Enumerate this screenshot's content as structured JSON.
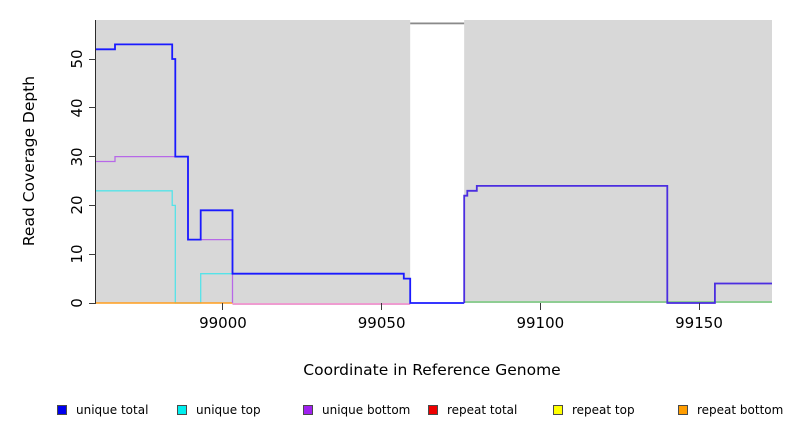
{
  "chart_data": {
    "type": "line",
    "subtype": "step-coverage-profile",
    "title": "",
    "xlabel": "Coordinate in Reference Genome",
    "ylabel": "Read Coverage Depth",
    "xlim": [
      98960,
      99173
    ],
    "ylim": [
      0,
      58
    ],
    "x_ticks": [
      99000,
      99050,
      99100,
      99150
    ],
    "x_tick_labels": [
      "99000",
      "99050",
      "99100",
      "99150"
    ],
    "y_ticks": [
      0,
      10,
      20,
      30,
      40,
      50
    ],
    "y_tick_labels": [
      "0",
      "10",
      "20",
      "30",
      "40",
      "50"
    ],
    "grid": false,
    "plot_background": "#d8d8d8",
    "legend_position": "bottom",
    "gap_region": {
      "x_start": 99059,
      "x_end": 99076,
      "note": "white vertical band with no data / no background"
    },
    "x_end": 99173,
    "series": [
      {
        "name": "unique total",
        "color": "#0000ff",
        "steps": [
          [
            98960,
            52
          ],
          [
            98966,
            53
          ],
          [
            98984,
            50
          ],
          [
            98985,
            30
          ],
          [
            98989,
            13
          ],
          [
            98993,
            19
          ],
          [
            99003,
            6
          ],
          [
            99057,
            5
          ],
          [
            99059,
            0
          ],
          [
            99076,
            22
          ],
          [
            99077,
            23
          ],
          [
            99080,
            24
          ],
          [
            99140,
            0
          ],
          [
            99155,
            4
          ]
        ]
      },
      {
        "name": "unique top",
        "color": "#00ffff",
        "steps": [
          [
            98960,
            23
          ],
          [
            98984,
            20
          ],
          [
            98985,
            0
          ],
          [
            98993,
            6
          ],
          [
            99057,
            5
          ],
          [
            99059,
            0
          ]
        ]
      },
      {
        "name": "unique bottom",
        "color": "#a020f0",
        "steps": [
          [
            98960,
            29
          ],
          [
            98966,
            30
          ],
          [
            98989,
            13
          ],
          [
            99003,
            0
          ],
          [
            99076,
            22
          ],
          [
            99077,
            23
          ],
          [
            99080,
            24
          ],
          [
            99140,
            0
          ],
          [
            99155,
            4
          ]
        ]
      },
      {
        "name": "repeat total",
        "color": "#ff0000",
        "steps": [
          [
            98960,
            0
          ]
        ]
      },
      {
        "name": "repeat top",
        "color": "#ffff00",
        "steps": [
          [
            98960,
            0
          ]
        ]
      },
      {
        "name": "repeat bottom",
        "color": "#ffa500",
        "steps": [
          [
            98960,
            0
          ]
        ]
      }
    ]
  },
  "legend": {
    "items": [
      {
        "label": "unique total",
        "color": "#0000ee"
      },
      {
        "label": "unique top",
        "color": "#00eeee"
      },
      {
        "label": "unique bottom",
        "color": "#a020f0"
      },
      {
        "label": "repeat total",
        "color": "#ee0000"
      },
      {
        "label": "repeat top",
        "color": "#ffff00"
      },
      {
        "label": "repeat bottom",
        "color": "#ff9d00"
      }
    ]
  },
  "render": {
    "axis_color": "#2b2b2b",
    "tick_color": "#3a3a3a",
    "gap_cap_color": "#8a8a8a",
    "paths": [
      {
        "name": "unique-top",
        "color": "#55e3e8",
        "w": 1.3,
        "steps": [
          [
            98960,
            23
          ],
          [
            98984,
            20
          ],
          [
            98985,
            0
          ],
          [
            98993,
            6
          ],
          [
            99057,
            5
          ],
          [
            99059,
            0
          ]
        ],
        "end": 99059
      },
      {
        "name": "zero-line-orange",
        "color": "#ff9d1e",
        "w": 1.5,
        "dy": 0,
        "steps": [
          [
            98960,
            0
          ]
        ],
        "end": 99003
      },
      {
        "name": "zero-line-pink",
        "color": "#e87bc0",
        "w": 1.4,
        "dy": 1,
        "steps": [
          [
            99003,
            0
          ]
        ],
        "end": 99059
      },
      {
        "name": "zero-line-green",
        "color": "#76c97c",
        "w": 1.4,
        "dy": -1,
        "steps": [
          [
            99076,
            0
          ]
        ],
        "end": 99173
      },
      {
        "name": "unique-bottom-left",
        "color": "#b768e8",
        "w": 1.3,
        "steps": [
          [
            98960,
            29
          ],
          [
            98966,
            30
          ],
          [
            98989,
            13
          ],
          [
            99003,
            0
          ]
        ]
      },
      {
        "name": "unique-bottom-right",
        "color": "#b768e8",
        "w": 1.3,
        "steps": [
          [
            99076,
            0
          ],
          [
            99076,
            22
          ],
          [
            99077,
            23
          ],
          [
            99080,
            24
          ],
          [
            99140,
            0
          ],
          [
            99155,
            4
          ]
        ],
        "end": 99173
      },
      {
        "name": "unique-total-left",
        "color": "#1a1aff",
        "w": 1.8,
        "steps": [
          [
            98960,
            52
          ],
          [
            98966,
            53
          ],
          [
            98984,
            50
          ],
          [
            98985,
            30
          ],
          [
            98989,
            13
          ],
          [
            98993,
            19
          ],
          [
            99003,
            6
          ],
          [
            99057,
            5
          ],
          [
            99059,
            0
          ]
        ],
        "end": 99076
      },
      {
        "name": "unique-total-right",
        "color": "#4b2ee0",
        "w": 1.8,
        "steps": [
          [
            99076,
            0
          ],
          [
            99076,
            22
          ],
          [
            99077,
            23
          ],
          [
            99080,
            24
          ],
          [
            99140,
            0
          ],
          [
            99155,
            4
          ]
        ],
        "end": 99173
      }
    ]
  }
}
